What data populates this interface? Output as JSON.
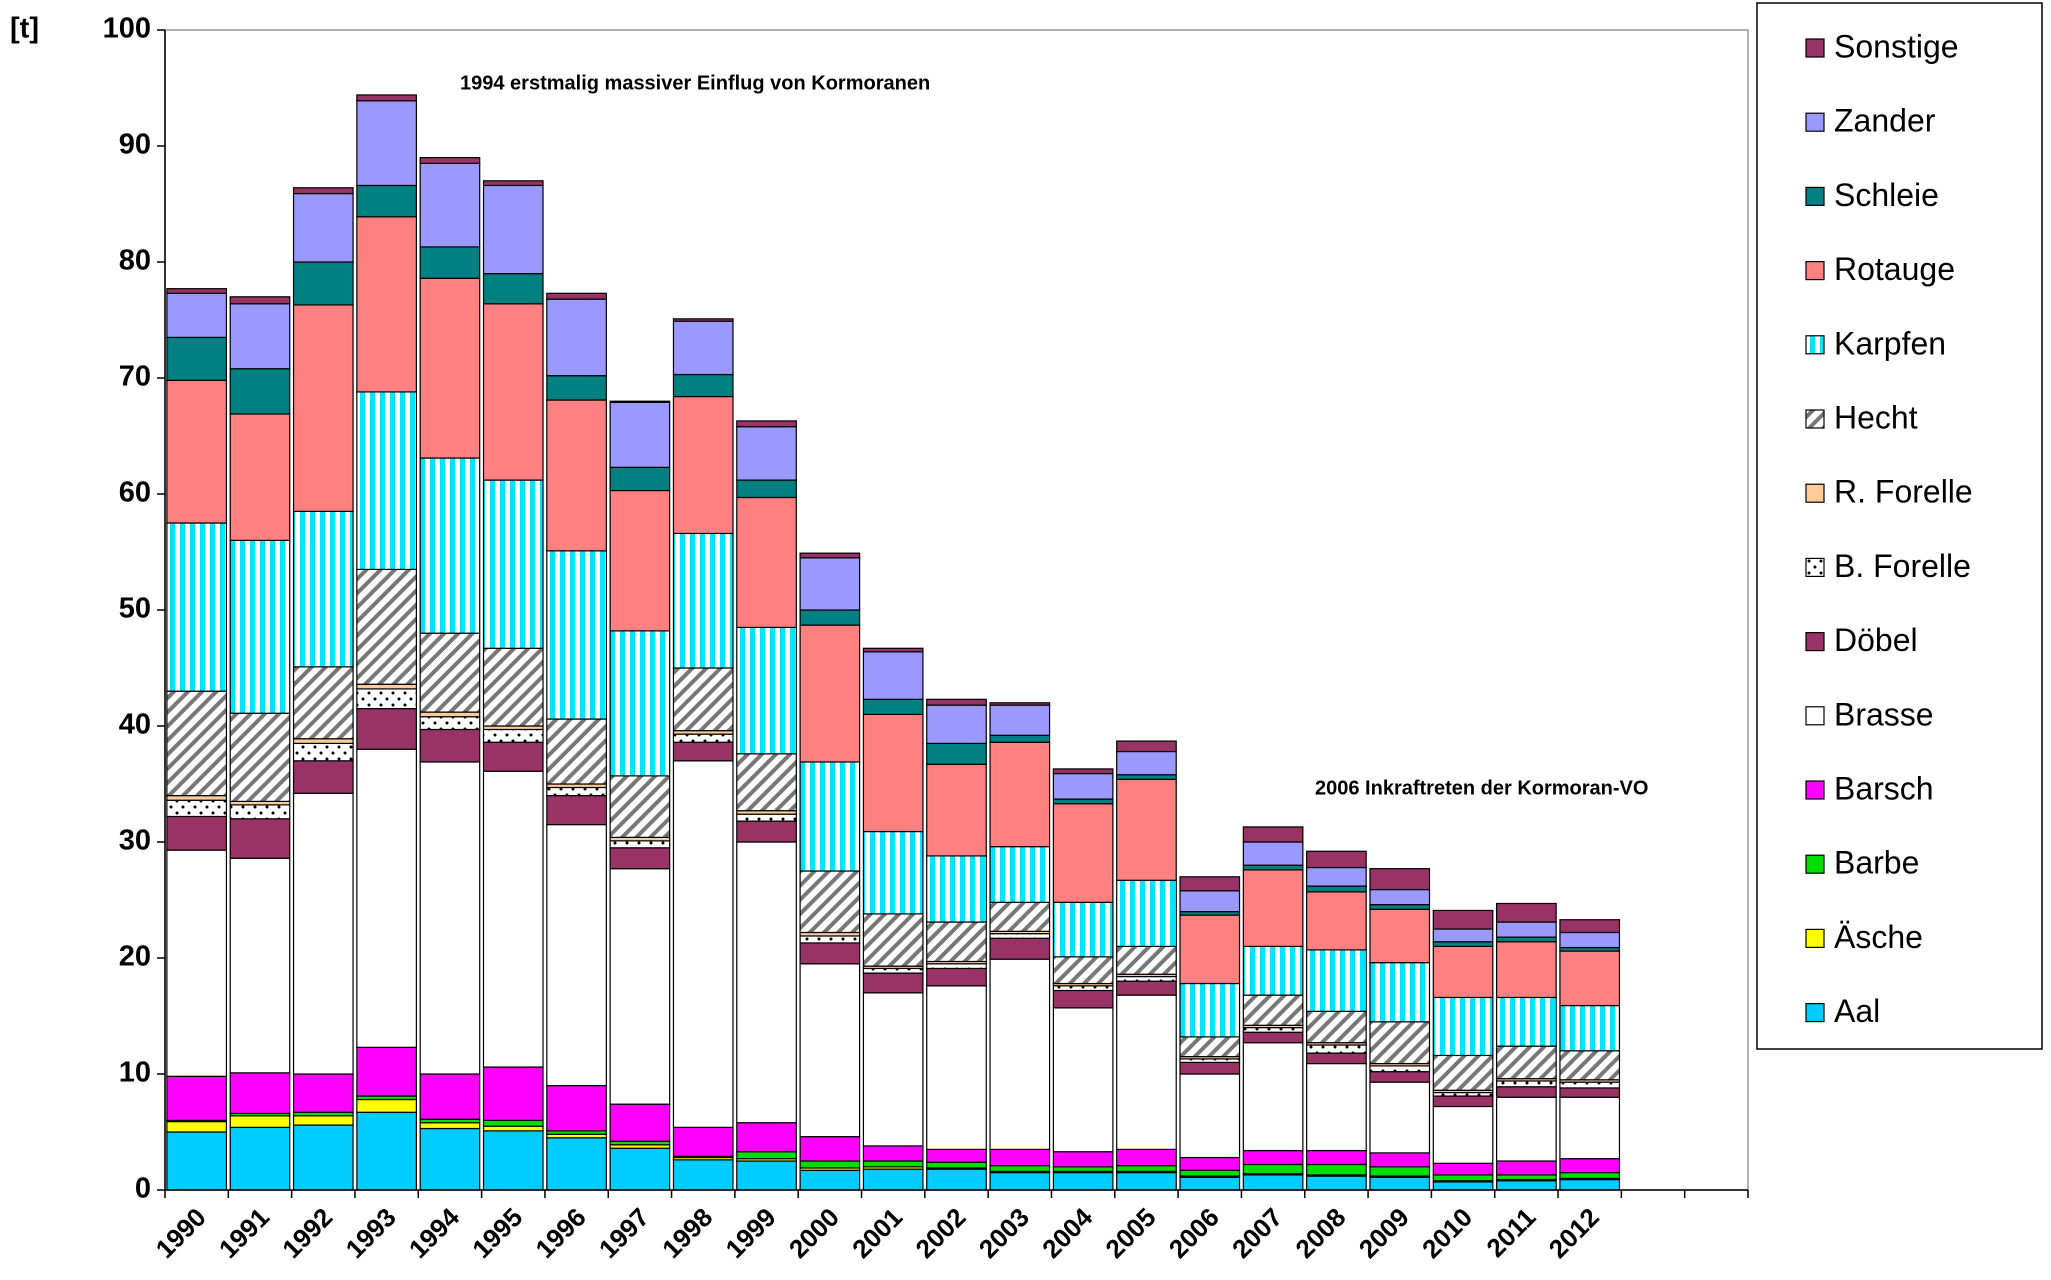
{
  "chart_data": {
    "type": "stacked_bar",
    "ylabel": "[t]",
    "annotations": [
      "1994 erstmalig massiver Einflug von Kormoranen",
      "2006 Inkraftreten der Kormoran-VO"
    ],
    "categories": [
      "1990",
      "1991",
      "1992",
      "1993",
      "1994",
      "1995",
      "1996",
      "1997",
      "1998",
      "1999",
      "2000",
      "2001",
      "2002",
      "2003",
      "2004",
      "2005",
      "2006",
      "2007",
      "2008",
      "2009",
      "2010",
      "2011",
      "2012",
      null,
      null
    ],
    "ylim": [
      0,
      100
    ],
    "yticks": [
      0,
      10,
      20,
      30,
      40,
      50,
      60,
      70,
      80,
      90,
      100
    ],
    "legend": "right",
    "series": [
      {
        "name": "Aal",
        "color": "#00ccff",
        "values": [
          5.0,
          5.4,
          5.6,
          6.7,
          5.3,
          5.1,
          4.5,
          3.6,
          2.6,
          2.5,
          1.7,
          1.8,
          1.8,
          1.5,
          1.5,
          1.5,
          1.1,
          1.3,
          1.2,
          1.1,
          0.7,
          0.8,
          0.9,
          null,
          null
        ]
      },
      {
        "name": "Äsche",
        "color": "#ffff00",
        "values": [
          0.9,
          1.0,
          0.8,
          1.1,
          0.5,
          0.4,
          0.3,
          0.3,
          0.2,
          0.2,
          0.2,
          0.2,
          0.1,
          0.1,
          0.1,
          0.1,
          0.1,
          0.1,
          0.1,
          0.1,
          0.1,
          0.1,
          0.1,
          null,
          null
        ]
      },
      {
        "name": "Barbe",
        "color": "#00dd00",
        "values": [
          0.1,
          0.2,
          0.3,
          0.3,
          0.3,
          0.5,
          0.3,
          0.3,
          0.1,
          0.6,
          0.6,
          0.5,
          0.5,
          0.5,
          0.4,
          0.5,
          0.5,
          0.8,
          0.9,
          0.8,
          0.5,
          0.4,
          0.5,
          null,
          null
        ]
      },
      {
        "name": "Barsch",
        "color": "#ff00ff",
        "values": [
          3.8,
          3.5,
          3.3,
          4.2,
          3.9,
          4.6,
          3.9,
          3.2,
          2.5,
          2.5,
          2.1,
          1.3,
          1.1,
          1.4,
          1.3,
          1.4,
          1.1,
          1.2,
          1.2,
          1.2,
          1.0,
          1.2,
          1.2,
          null,
          null
        ]
      },
      {
        "name": "Brasse",
        "color": "#ffffff",
        "values": [
          19.5,
          18.5,
          24.2,
          25.7,
          26.9,
          25.5,
          22.5,
          20.3,
          31.6,
          24.2,
          14.9,
          13.2,
          14.1,
          16.4,
          12.4,
          13.3,
          7.2,
          9.3,
          7.5,
          6.1,
          4.9,
          5.5,
          5.3,
          null,
          null
        ]
      },
      {
        "name": "Döbel",
        "color": "#993366",
        "values": [
          2.9,
          3.4,
          2.8,
          3.5,
          2.8,
          2.5,
          2.5,
          1.8,
          1.6,
          1.8,
          1.8,
          1.7,
          1.5,
          1.8,
          1.5,
          1.2,
          1.0,
          0.9,
          0.9,
          0.9,
          0.9,
          0.9,
          0.8,
          null,
          null
        ]
      },
      {
        "name": "B. Forelle",
        "color": "#ffffff",
        "pattern": "dots",
        "values": [
          1.4,
          1.2,
          1.5,
          1.7,
          1.1,
          1.1,
          0.7,
          0.6,
          0.7,
          0.6,
          0.6,
          0.4,
          0.4,
          0.4,
          0.4,
          0.4,
          0.3,
          0.4,
          0.7,
          0.5,
          0.3,
          0.5,
          0.5,
          null,
          null
        ]
      },
      {
        "name": "R. Forelle",
        "color": "#ffcc99",
        "values": [
          0.4,
          0.3,
          0.4,
          0.4,
          0.4,
          0.3,
          0.3,
          0.3,
          0.3,
          0.3,
          0.3,
          0.2,
          0.2,
          0.2,
          0.2,
          0.2,
          0.2,
          0.2,
          0.2,
          0.2,
          0.2,
          0.2,
          0.2,
          null,
          null
        ]
      },
      {
        "name": "Hecht",
        "color": "#888888",
        "pattern": "hatch",
        "values": [
          9.0,
          7.6,
          6.2,
          9.9,
          6.8,
          6.7,
          5.6,
          5.3,
          5.4,
          4.9,
          5.3,
          4.5,
          3.4,
          2.5,
          2.3,
          2.4,
          1.7,
          2.6,
          2.7,
          3.6,
          3.0,
          2.8,
          2.5,
          null,
          null
        ]
      },
      {
        "name": "Karpfen",
        "color": "#00e5ff",
        "pattern": "stripes",
        "values": [
          14.5,
          14.9,
          13.4,
          15.3,
          15.1,
          14.5,
          14.5,
          12.5,
          11.6,
          10.9,
          9.4,
          7.1,
          5.7,
          4.8,
          4.7,
          5.7,
          4.6,
          4.2,
          5.3,
          5.1,
          5.0,
          4.2,
          3.9,
          null,
          null
        ]
      },
      {
        "name": "Rotauge",
        "color": "#ff8080",
        "values": [
          12.3,
          10.9,
          17.8,
          15.1,
          15.5,
          15.2,
          13.0,
          12.1,
          11.8,
          11.2,
          11.8,
          10.1,
          7.9,
          9.0,
          8.5,
          8.7,
          5.9,
          6.6,
          5.0,
          4.6,
          4.4,
          4.8,
          4.7,
          null,
          null
        ]
      },
      {
        "name": "Schleie",
        "color": "#008080",
        "values": [
          3.7,
          3.9,
          3.7,
          2.7,
          2.7,
          2.6,
          2.1,
          2.0,
          1.9,
          1.5,
          1.3,
          1.3,
          1.8,
          0.6,
          0.4,
          0.4,
          0.3,
          0.4,
          0.5,
          0.4,
          0.4,
          0.4,
          0.3,
          null,
          null
        ]
      },
      {
        "name": "Zander",
        "color": "#9999ff",
        "values": [
          3.8,
          5.6,
          5.9,
          7.3,
          7.2,
          7.6,
          6.6,
          5.6,
          4.6,
          4.6,
          4.5,
          4.1,
          3.3,
          2.6,
          2.2,
          2.0,
          1.8,
          2.0,
          1.6,
          1.3,
          1.1,
          1.3,
          1.3,
          null,
          null
        ]
      },
      {
        "name": "Sonstige",
        "color": "#993366",
        "values": [
          0.4,
          0.6,
          0.5,
          0.5,
          0.5,
          0.4,
          0.5,
          0.1,
          0.2,
          0.5,
          0.4,
          0.3,
          0.5,
          0.2,
          0.4,
          0.9,
          1.2,
          1.3,
          1.4,
          1.8,
          1.6,
          1.6,
          1.1,
          null,
          null
        ]
      }
    ]
  }
}
